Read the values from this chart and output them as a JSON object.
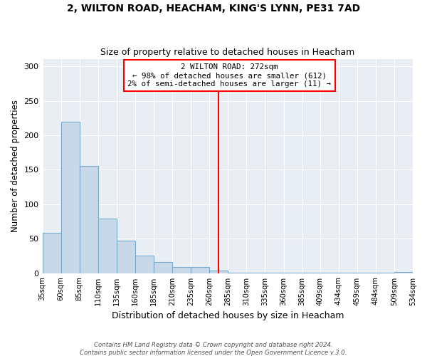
{
  "title": "2, WILTON ROAD, HEACHAM, KING'S LYNN, PE31 7AD",
  "subtitle": "Size of property relative to detached houses in Heacham",
  "xlabel": "Distribution of detached houses by size in Heacham",
  "ylabel": "Number of detached properties",
  "footnote1": "Contains HM Land Registry data © Crown copyright and database right 2024.",
  "footnote2": "Contains public sector information licensed under the Open Government Licence v.3.0.",
  "bin_edges": [
    35,
    60,
    85,
    110,
    135,
    160,
    185,
    210,
    235,
    260,
    285,
    310,
    335,
    360,
    385,
    409,
    434,
    459,
    484,
    509,
    534
  ],
  "bar_heights": [
    58,
    220,
    156,
    79,
    47,
    25,
    16,
    9,
    9,
    4,
    1,
    1,
    1,
    1,
    1,
    1,
    1,
    1,
    1,
    2
  ],
  "bar_color": "#c8d8e8",
  "bar_edge_color": "#7aaac8",
  "property_line_x": 272,
  "property_line_color": "red",
  "annotation_title": "2 WILTON ROAD: 272sqm",
  "annotation_line1": "← 98% of detached houses are smaller (612)",
  "annotation_line2": "2% of semi-detached houses are larger (11) →",
  "annotation_box_color": "red",
  "ylim": [
    0,
    310
  ],
  "background_color": "#ffffff",
  "plot_bg_color": "#e8eef4",
  "grid_color": "#ffffff",
  "tick_labels": [
    "35sqm",
    "60sqm",
    "85sqm",
    "110sqm",
    "135sqm",
    "160sqm",
    "185sqm",
    "210sqm",
    "235sqm",
    "260sqm",
    "285sqm",
    "310sqm",
    "335sqm",
    "360sqm",
    "385sqm",
    "409sqm",
    "434sqm",
    "459sqm",
    "484sqm",
    "509sqm",
    "534sqm"
  ]
}
